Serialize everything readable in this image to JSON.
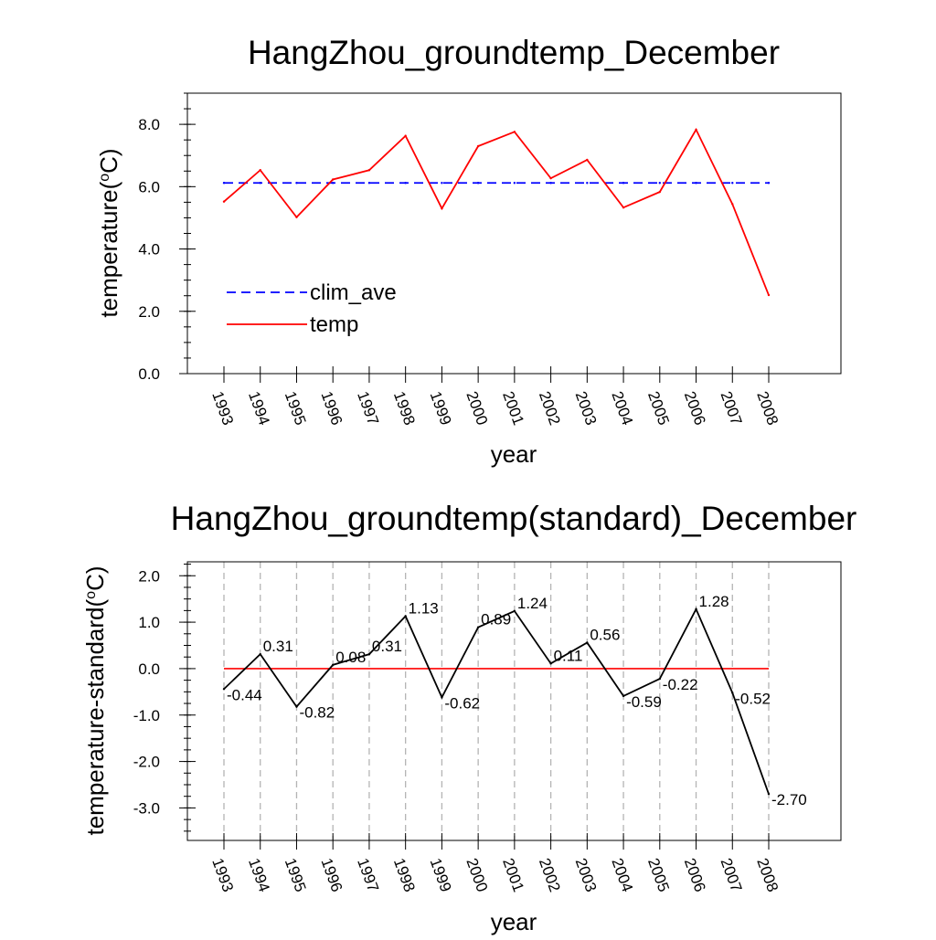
{
  "chart_data": [
    {
      "type": "line",
      "title": "HangZhou_groundtemp_December",
      "xlabel": "year",
      "ylabel": "temperature(",
      "ylabel_sup": "o",
      "ylabel_end": "C)",
      "categories": [
        "1993",
        "1994",
        "1995",
        "1996",
        "1997",
        "1998",
        "1999",
        "2000",
        "2001",
        "2002",
        "2003",
        "2004",
        "2005",
        "2006",
        "2007",
        "2008"
      ],
      "ylim": [
        0,
        9
      ],
      "yticks": [
        "0.0",
        "2.0",
        "4.0",
        "6.0",
        "8.0"
      ],
      "yticks_values": [
        0,
        2,
        4,
        6,
        8
      ],
      "grid": false,
      "legend_position": "bottom-left",
      "series": [
        {
          "name": "clim_ave",
          "color": "#0000ff",
          "dashed": true,
          "values": [
            6.12,
            6.12,
            6.12,
            6.12,
            6.12,
            6.12,
            6.12,
            6.12,
            6.12,
            6.12,
            6.12,
            6.12,
            6.12,
            6.12,
            6.12,
            6.12
          ]
        },
        {
          "name": "temp",
          "color": "#ff0000",
          "dashed": false,
          "values": [
            5.52,
            6.53,
            5.02,
            6.23,
            6.53,
            7.63,
            5.3,
            7.3,
            7.76,
            6.27,
            6.86,
            5.33,
            5.83,
            7.83,
            5.44,
            2.52
          ]
        }
      ]
    },
    {
      "type": "line",
      "title": "HangZhou_groundtemp(standard)_December",
      "xlabel": "year",
      "ylabel": "temperature-standard(",
      "ylabel_sup": "o",
      "ylabel_end": "C)",
      "categories": [
        "1993",
        "1994",
        "1995",
        "1996",
        "1997",
        "1998",
        "1999",
        "2000",
        "2001",
        "2002",
        "2003",
        "2004",
        "2005",
        "2006",
        "2007",
        "2008"
      ],
      "ylim": [
        -3.7,
        2.3
      ],
      "yticks": [
        "-3.0",
        "-2.0",
        "-1.0",
        "0.0",
        "1.0",
        "2.0"
      ],
      "yticks_values": [
        -3,
        -2,
        -1,
        0,
        1,
        2
      ],
      "grid": true,
      "reference_line": {
        "value": 0,
        "color": "#ff0000"
      },
      "series": [
        {
          "color": "#000000",
          "values": [
            -0.44,
            0.31,
            -0.82,
            0.08,
            0.31,
            1.13,
            -0.62,
            0.89,
            1.24,
            0.11,
            0.56,
            -0.59,
            -0.22,
            1.28,
            -0.52,
            -2.7
          ],
          "labels": [
            "-0.44",
            "0.31",
            "-0.82",
            "0.08",
            "0.31",
            "1.13",
            "-0.62",
            "0.89",
            "1.24",
            "0.11",
            "0.56",
            "-0.59",
            "-0.22",
            "1.28",
            "-0.52",
            "-2.70"
          ]
        }
      ]
    }
  ]
}
